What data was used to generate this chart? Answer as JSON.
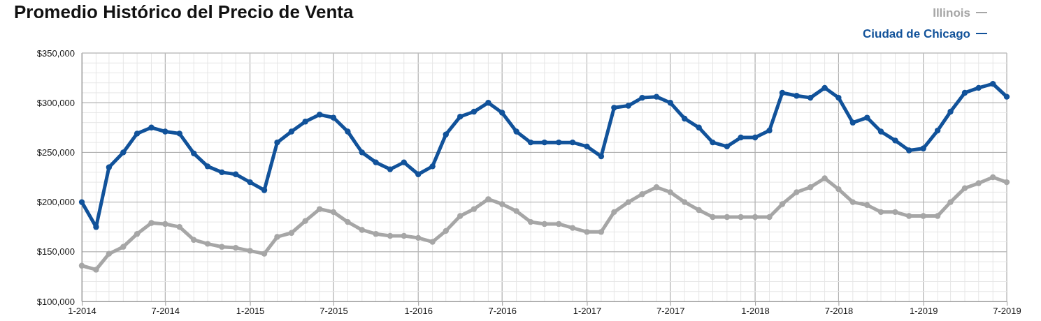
{
  "chart_data": {
    "type": "line",
    "title": "Promedio Histórico del Precio de Venta",
    "x": [
      "2014-01",
      "2014-02",
      "2014-03",
      "2014-04",
      "2014-05",
      "2014-06",
      "2014-07",
      "2014-08",
      "2014-09",
      "2014-10",
      "2014-11",
      "2014-12",
      "2015-01",
      "2015-02",
      "2015-03",
      "2015-04",
      "2015-05",
      "2015-06",
      "2015-07",
      "2015-08",
      "2015-09",
      "2015-10",
      "2015-11",
      "2015-12",
      "2016-01",
      "2016-02",
      "2016-03",
      "2016-04",
      "2016-05",
      "2016-06",
      "2016-07",
      "2016-08",
      "2016-09",
      "2016-10",
      "2016-11",
      "2016-12",
      "2017-01",
      "2017-02",
      "2017-03",
      "2017-04",
      "2017-05",
      "2017-06",
      "2017-07",
      "2017-08",
      "2017-09",
      "2017-10",
      "2017-11",
      "2017-12",
      "2018-01",
      "2018-02",
      "2018-03",
      "2018-04",
      "2018-05",
      "2018-06",
      "2018-07",
      "2018-08",
      "2018-09",
      "2018-10",
      "2018-11",
      "2018-12",
      "2019-01",
      "2019-02",
      "2019-03",
      "2019-04",
      "2019-05",
      "2019-06",
      "2019-07"
    ],
    "series": [
      {
        "name": "Illinois",
        "color": "#a6a6a6",
        "values": [
          136000,
          132000,
          148000,
          155000,
          168000,
          179000,
          178000,
          175000,
          162000,
          158000,
          155000,
          154000,
          151000,
          148000,
          165000,
          169000,
          181000,
          193000,
          190000,
          180000,
          172000,
          168000,
          166000,
          166000,
          164000,
          160000,
          171000,
          186000,
          193000,
          203000,
          198000,
          191000,
          180000,
          178000,
          178000,
          174000,
          170000,
          170000,
          190000,
          200000,
          208000,
          215000,
          210000,
          200000,
          192000,
          185000,
          185000,
          185000,
          185000,
          185000,
          198000,
          210000,
          215000,
          224000,
          213000,
          200000,
          197000,
          190000,
          190000,
          186000,
          186000,
          186000,
          200000,
          214000,
          219000,
          225000,
          220000
        ]
      },
      {
        "name": "Ciudad de Chicago",
        "color": "#11529a",
        "values": [
          200000,
          175000,
          235000,
          250000,
          269000,
          275000,
          271000,
          269000,
          249000,
          236000,
          230000,
          228000,
          220000,
          212000,
          260000,
          271000,
          281000,
          288000,
          285000,
          271000,
          250000,
          240000,
          233000,
          240000,
          228000,
          236000,
          268000,
          286000,
          291000,
          300000,
          290000,
          271000,
          260000,
          260000,
          260000,
          260000,
          256000,
          246000,
          295000,
          297000,
          305000,
          306000,
          300000,
          284000,
          275000,
          260000,
          256000,
          265000,
          265000,
          272000,
          310000,
          307000,
          305000,
          315000,
          305000,
          280000,
          285000,
          271000,
          262000,
          252000,
          254000,
          272000,
          291000,
          310000,
          315000,
          319000,
          306000
        ]
      }
    ],
    "xlim": [
      "2014-01",
      "2019-07"
    ],
    "xticks": [
      {
        "value": "2014-01",
        "label": "1-2014"
      },
      {
        "value": "2014-07",
        "label": "7-2014"
      },
      {
        "value": "2015-01",
        "label": "1-2015"
      },
      {
        "value": "2015-07",
        "label": "7-2015"
      },
      {
        "value": "2016-01",
        "label": "1-2016"
      },
      {
        "value": "2016-07",
        "label": "7-2016"
      },
      {
        "value": "2017-01",
        "label": "1-2017"
      },
      {
        "value": "2017-07",
        "label": "7-2017"
      },
      {
        "value": "2018-01",
        "label": "1-2018"
      },
      {
        "value": "2018-07",
        "label": "7-2018"
      },
      {
        "value": "2019-01",
        "label": "1-2019"
      },
      {
        "value": "2019-07",
        "label": "7-2019"
      }
    ],
    "ylim": [
      100000,
      350000
    ],
    "yticks": [
      {
        "value": 100000,
        "label": "$100,000"
      },
      {
        "value": 150000,
        "label": "$150,000"
      },
      {
        "value": 200000,
        "label": "$200,000"
      },
      {
        "value": 250000,
        "label": "$250,000"
      },
      {
        "value": 300000,
        "label": "$300,000"
      },
      {
        "value": 350000,
        "label": "$350,000"
      }
    ],
    "grid": true,
    "legend": "top right",
    "marker": "circle",
    "line_style": "solid"
  }
}
